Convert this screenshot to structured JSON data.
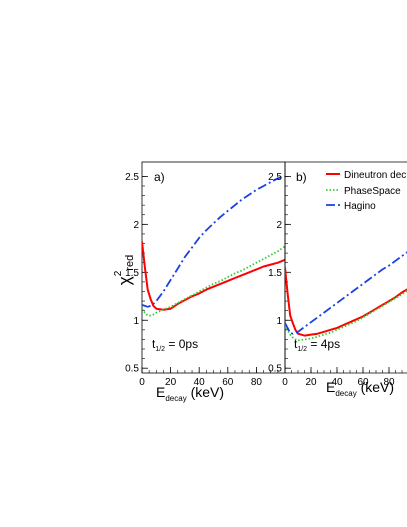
{
  "chart_data": {
    "type": "line",
    "ylabel": {
      "main": "χ",
      "sup": "2",
      "sub": "red"
    },
    "ylim": [
      0.45,
      2.65
    ],
    "xlim": [
      0,
      100
    ],
    "yticks": [
      0.5,
      1,
      1.5,
      2,
      2.5
    ],
    "ytick_labels": [
      "0.5",
      "1",
      "1.5",
      "2",
      "2.5"
    ],
    "xticks": [
      0,
      20,
      40,
      60,
      80
    ],
    "xtick_labels": [
      "0",
      "20",
      "40",
      "60",
      "80"
    ],
    "legend_placement": "top-right",
    "series_styles": [
      {
        "name": "Dineutron dec",
        "color": "#ff0000",
        "dash": ""
      },
      {
        "name": "PhaseSpace",
        "color": "#33cc33",
        "dash": "1.5,2"
      },
      {
        "name": "Hagino",
        "color": "#1a40e6",
        "dash": "9,3,2,3"
      }
    ],
    "panels": [
      {
        "tag": "a)",
        "xlabel": {
          "main": "E",
          "sub": "decay",
          "unit": " (keV)"
        },
        "annotation": {
          "main": "t",
          "sub": "1/2",
          "rest": " = 0ps"
        },
        "x": [
          0,
          2,
          4,
          6,
          8,
          10,
          15,
          20,
          25,
          30,
          35,
          40,
          45,
          50,
          55,
          60,
          65,
          70,
          75,
          80,
          85,
          90,
          95,
          100
        ],
        "series": [
          {
            "name": "Dineutron dec",
            "values": [
              1.82,
              1.55,
              1.32,
              1.22,
              1.15,
              1.12,
              1.11,
              1.12,
              1.17,
              1.21,
              1.25,
              1.28,
              1.32,
              1.35,
              1.38,
              1.41,
              1.44,
              1.47,
              1.5,
              1.53,
              1.56,
              1.58,
              1.6,
              1.63
            ]
          },
          {
            "name": "PhaseSpace",
            "values": [
              1.12,
              1.08,
              1.05,
              1.05,
              1.06,
              1.08,
              1.11,
              1.14,
              1.18,
              1.22,
              1.26,
              1.3,
              1.34,
              1.38,
              1.41,
              1.45,
              1.49,
              1.52,
              1.56,
              1.6,
              1.64,
              1.68,
              1.72,
              1.77
            ]
          },
          {
            "name": "Hagino",
            "values": [
              1.16,
              1.15,
              1.14,
              1.15,
              1.17,
              1.2,
              1.3,
              1.42,
              1.54,
              1.66,
              1.76,
              1.86,
              1.94,
              2.01,
              2.08,
              2.14,
              2.2,
              2.26,
              2.31,
              2.36,
              2.4,
              2.44,
              2.48,
              2.5
            ]
          }
        ]
      },
      {
        "tag": "b)",
        "xlabel": {
          "main": "E",
          "sub": "decay",
          "unit": " (keV)"
        },
        "annotation": {
          "main": "t",
          "sub": "1/2",
          "rest": " = 4ps"
        },
        "x": [
          0,
          2,
          4,
          6,
          8,
          10,
          15,
          20,
          25,
          30,
          35,
          40,
          45,
          50,
          55,
          60,
          65,
          70,
          75,
          80,
          85,
          90,
          95,
          100
        ],
        "series": [
          {
            "name": "Dineutron dec",
            "values": [
              1.55,
              1.28,
              1.05,
              0.97,
              0.9,
              0.86,
              0.84,
              0.85,
              0.86,
              0.88,
              0.9,
              0.92,
              0.95,
              0.98,
              1.01,
              1.04,
              1.08,
              1.12,
              1.16,
              1.2,
              1.24,
              1.29,
              1.33,
              1.37
            ]
          },
          {
            "name": "PhaseSpace",
            "values": [
              0.95,
              0.9,
              0.85,
              0.82,
              0.8,
              0.79,
              0.8,
              0.81,
              0.83,
              0.85,
              0.87,
              0.9,
              0.93,
              0.96,
              0.99,
              1.03,
              1.07,
              1.11,
              1.15,
              1.19,
              1.23,
              1.27,
              1.32,
              1.36
            ]
          },
          {
            "name": "Hagino",
            "values": [
              0.97,
              0.92,
              0.87,
              0.86,
              0.87,
              0.88,
              0.93,
              0.98,
              1.03,
              1.08,
              1.13,
              1.18,
              1.23,
              1.28,
              1.33,
              1.38,
              1.43,
              1.48,
              1.53,
              1.57,
              1.62,
              1.67,
              1.72,
              1.77
            ]
          }
        ]
      }
    ]
  }
}
